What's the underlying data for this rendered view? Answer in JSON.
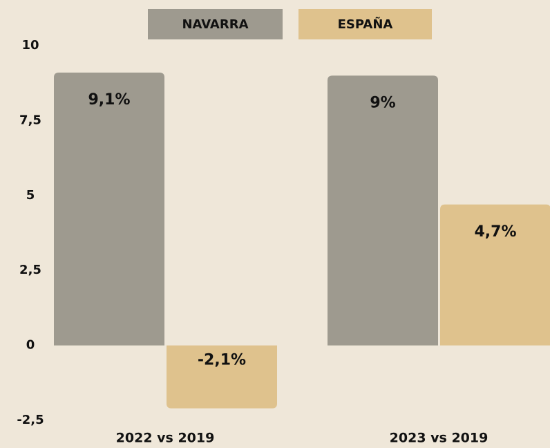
{
  "chart_data": {
    "type": "bar",
    "categories": [
      "2022 vs 2019",
      "2023 vs 2019"
    ],
    "series": [
      {
        "name": "NAVARRA",
        "color": "#9e9a8f",
        "values": [
          9.1,
          9
        ],
        "value_labels": [
          "9,1%",
          "9%"
        ]
      },
      {
        "name": "ESPAÑA",
        "color": "#dfc28d",
        "values": [
          -2.1,
          4.7
        ],
        "value_labels": [
          "-2,1%",
          "4,7%"
        ]
      }
    ],
    "ylim": [
      -2.5,
      10
    ],
    "yticks": [
      {
        "value": -2.5,
        "label": "-2,5"
      },
      0,
      {
        "value": 2.5,
        "label": "2,5"
      },
      5,
      {
        "value": 7.5,
        "label": "7,5"
      },
      10
    ],
    "grid": false
  }
}
